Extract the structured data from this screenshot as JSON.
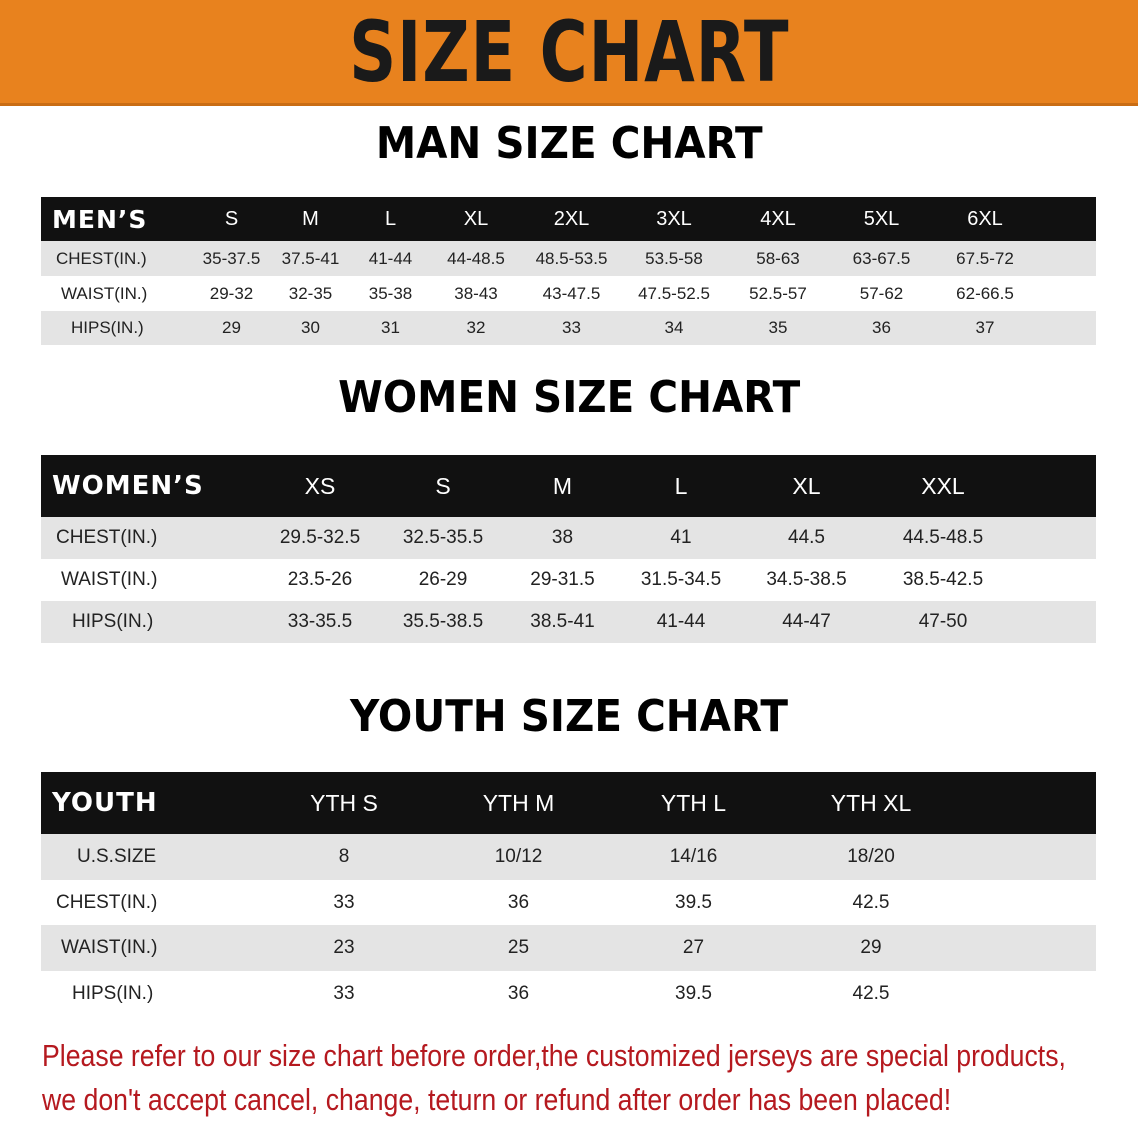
{
  "banner": {
    "title": "SIZE CHART",
    "color": "#e8821e"
  },
  "men": {
    "title": "MAN SIZE CHART",
    "header": "MEN’S",
    "sizes": [
      "S",
      "M",
      "L",
      "XL",
      "2XL",
      "3XL",
      "4XL",
      "5XL",
      "6XL"
    ],
    "rows": [
      {
        "label": "CHEST(IN.)",
        "values": [
          "35-37.5",
          "37.5-41",
          "41-44",
          "44-48.5",
          "48.5-53.5",
          "53.5-58",
          "58-63",
          "63-67.5",
          "67.5-72"
        ]
      },
      {
        "label": "WAIST(IN.)",
        "values": [
          "29-32",
          "32-35",
          "35-38",
          "38-43",
          "43-47.5",
          "47.5-52.5",
          "52.5-57",
          "57-62",
          "62-66.5"
        ]
      },
      {
        "label": "HIPS(IN.)",
        "values": [
          "29",
          "30",
          "31",
          "32",
          "33",
          "34",
          "35",
          "36",
          "37"
        ]
      }
    ]
  },
  "women": {
    "title": "WOMEN SIZE CHART",
    "header": "WOMEN’S",
    "sizes": [
      "XS",
      "S",
      "M",
      "L",
      "XL",
      "XXL"
    ],
    "rows": [
      {
        "label": "CHEST(IN.)",
        "values": [
          "29.5-32.5",
          "32.5-35.5",
          "38",
          "41",
          "44.5",
          "44.5-48.5"
        ]
      },
      {
        "label": "WAIST(IN.)",
        "values": [
          "23.5-26",
          "26-29",
          "29-31.5",
          "31.5-34.5",
          "34.5-38.5",
          "38.5-42.5"
        ]
      },
      {
        "label": "HIPS(IN.)",
        "values": [
          "33-35.5",
          "35.5-38.5",
          "38.5-41",
          "41-44",
          "44-47",
          "47-50"
        ]
      }
    ]
  },
  "youth": {
    "title": "YOUTH SIZE CHART",
    "header": "YOUTH",
    "sizes": [
      "YTH S",
      "YTH M",
      "YTH L",
      "YTH XL"
    ],
    "rows": [
      {
        "label": "U.S.SIZE",
        "values": [
          "8",
          "10/12",
          "14/16",
          "18/20"
        ]
      },
      {
        "label": "CHEST(IN.)",
        "values": [
          "33",
          "36",
          "39.5",
          "42.5"
        ]
      },
      {
        "label": "WAIST(IN.)",
        "values": [
          "23",
          "25",
          "27",
          "29"
        ]
      },
      {
        "label": "HIPS(IN.)",
        "values": [
          "33",
          "36",
          "39.5",
          "42.5"
        ]
      }
    ]
  },
  "notice": {
    "line1": "Please refer to our size chart before order,the customized jerseys are special products,",
    "line2": "we don't accept cancel, change, teturn or refund after order has been placed!",
    "color": "#b5191f"
  }
}
